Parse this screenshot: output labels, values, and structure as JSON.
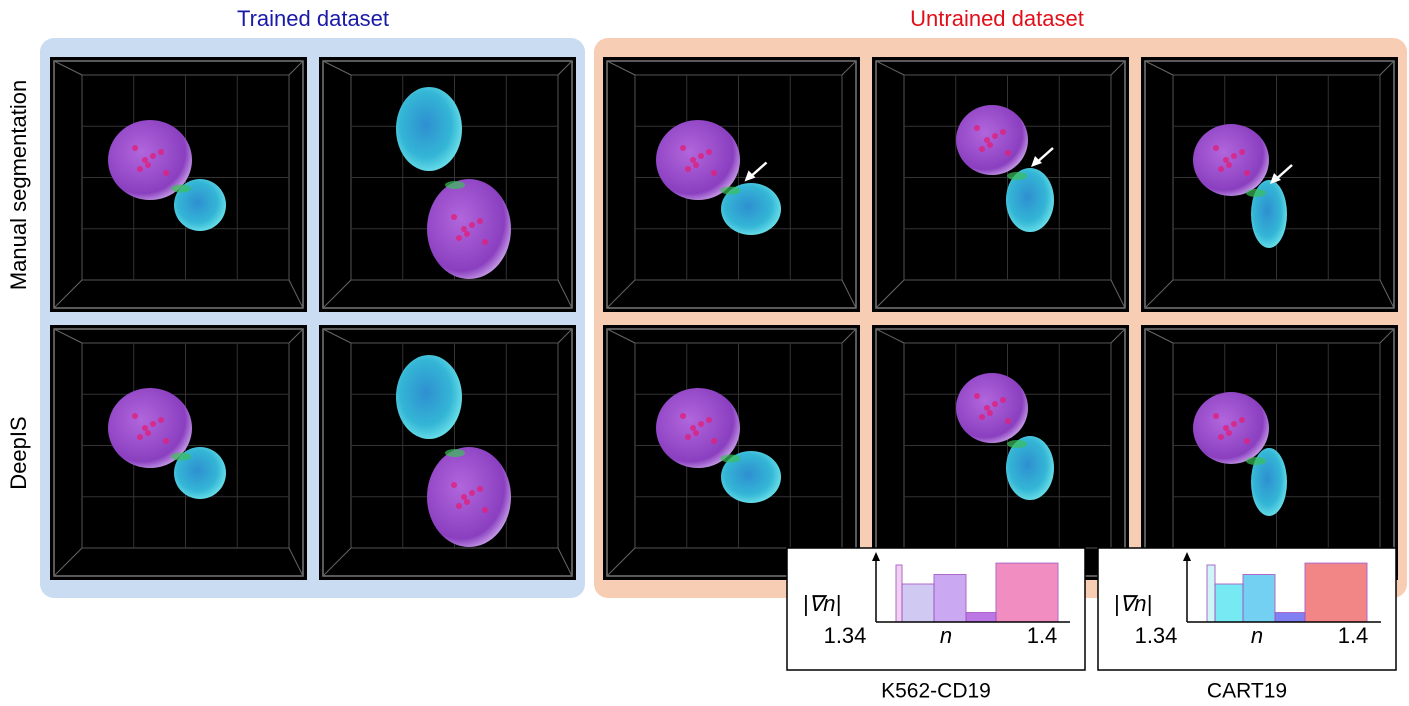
{
  "header": {
    "trained": "Trained dataset",
    "untrained": "Untrained dataset"
  },
  "rows": [
    "Manual segmentation",
    "DeepIS"
  ],
  "insets": [
    {
      "ylabel": "|∇n|",
      "xmin": 1.34,
      "xlabel": "n",
      "xmax": 1.4,
      "caption": "K562-CD19"
    },
    {
      "ylabel": "|∇n|",
      "xmin": 1.34,
      "xlabel": "n",
      "xmax": 1.4,
      "caption": "CART19"
    }
  ]
}
